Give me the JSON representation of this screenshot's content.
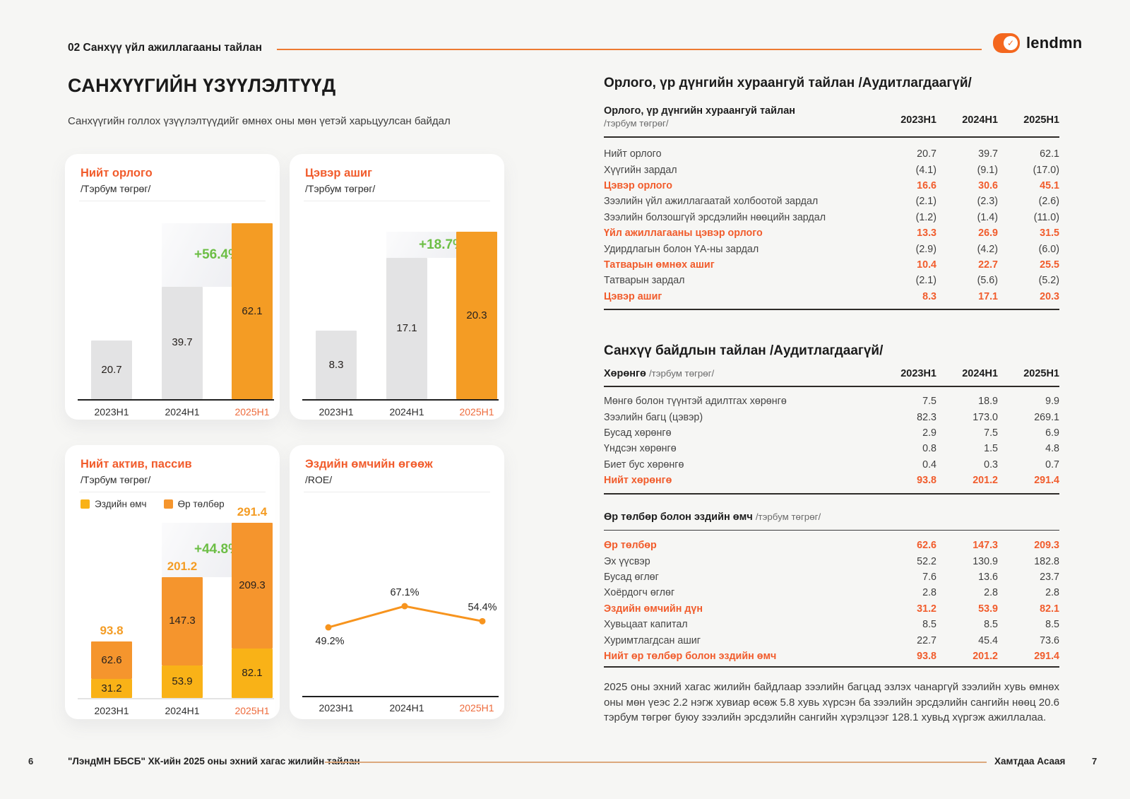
{
  "page": {
    "header": {
      "section_label": "02 Санхүү үйл ажиллагааны тайлан",
      "brand": "lendmn"
    },
    "title": "САНХҮҮГИЙН ҮЗҮҮЛЭЛТҮҮД",
    "subtitle": "Санхүүгийн голлох үзүүлэлтүүдийг өмнөх оны мөн үетэй харьцуулсан байдал",
    "footer": {
      "page_left": "6",
      "report_title": "\"ЛэндМН ББСБ\" ХК-ийн 2025 оны эхний хагас жилийн тайлан",
      "slogan": "Хамтдаа Асаая",
      "page_right": "7"
    }
  },
  "colors": {
    "accent": "#F15C2C",
    "bar_highlight": "#F49C24",
    "bar_default": "#E3E3E4",
    "stack_yellow": "#F9B217",
    "stack_orange": "#F5952D",
    "growth_green": "#6CBE45",
    "line_orange": "#F7941E",
    "header_line": "#EE7A31",
    "footer_line": "#DCA87D"
  },
  "chart_data": [
    {
      "type": "bar",
      "title": "Нийт орлого",
      "subtitle": "/Тэрбум төгрөг/",
      "categories": [
        "2023H1",
        "2024H1",
        "2025H1"
      ],
      "values": [
        20.7,
        39.7,
        62.1
      ],
      "value_labels": [
        "20.7",
        "39.7",
        "62.1"
      ],
      "growth_label": "+56.4%",
      "highlight_index": 2,
      "ylim": [
        0,
        62.1
      ],
      "grid": false
    },
    {
      "type": "bar",
      "title": "Цэвэр ашиг",
      "subtitle": "/Тэрбум төгрөг/",
      "categories": [
        "2023H1",
        "2024H1",
        "2025H1"
      ],
      "values": [
        8.3,
        17.1,
        20.3
      ],
      "value_labels": [
        "8.3",
        "17.1",
        "20.3"
      ],
      "growth_label": "+18.7%",
      "highlight_index": 2,
      "ylim": [
        0,
        20.3
      ],
      "grid": false
    },
    {
      "type": "stacked-bar",
      "title": "Нийт актив, пассив",
      "subtitle": "/Тэрбум төгрөг/",
      "categories": [
        "2023H1",
        "2024H1",
        "2025H1"
      ],
      "series": [
        {
          "name": "Эздийн өмч",
          "values": [
            31.2,
            53.9,
            82.1
          ],
          "labels": [
            "31.2",
            "53.9",
            "82.1"
          ]
        },
        {
          "name": "Өр төлбөр",
          "values": [
            62.6,
            147.3,
            209.3
          ],
          "labels": [
            "62.6",
            "147.3",
            "209.3"
          ]
        }
      ],
      "totals": [
        93.8,
        201.2,
        291.4
      ],
      "total_labels": [
        "93.8",
        "201.2",
        "291.4"
      ],
      "growth_label": "+44.8%",
      "highlight_index": 2,
      "legend_position": "top",
      "grid": false
    },
    {
      "type": "line",
      "title": "Эздийн өмчийн өгөөж",
      "subtitle": "/ROE/",
      "categories": [
        "2023H1",
        "2024H1",
        "2025H1"
      ],
      "values": [
        49.2,
        67.1,
        54.4
      ],
      "value_labels": [
        "49.2%",
        "67.1%",
        "54.4%"
      ],
      "highlight_index": 2,
      "grid": false
    }
  ],
  "tables": {
    "income": {
      "section_title": "Орлого, үр дүнгийн хураангуй тайлан /Аудитлагдаагүй/",
      "header": {
        "label": "Орлого, үр дүнгийн хураангуй тайлан",
        "sublabel": "/тэрбум төгрөг/",
        "columns": [
          "2023H1",
          "2024H1",
          "2025H1"
        ]
      },
      "rows": [
        {
          "label": "Нийт орлого",
          "values": [
            "20.7",
            "39.7",
            "62.1"
          ],
          "em": false
        },
        {
          "label": "Хүүгийн зардал",
          "values": [
            "(4.1)",
            "(9.1)",
            "(17.0)"
          ],
          "em": false
        },
        {
          "label": "Цэвэр орлого",
          "values": [
            "16.6",
            "30.6",
            "45.1"
          ],
          "em": true
        },
        {
          "label": "Зээлийн үйл ажиллагаатай холбоотой зардал",
          "values": [
            "(2.1)",
            "(2.3)",
            "(2.6)"
          ],
          "em": false
        },
        {
          "label": "Зээлийн болзошгүй эрсдэлийн нөөцийн зардал",
          "values": [
            "(1.2)",
            "(1.4)",
            "(11.0)"
          ],
          "em": false
        },
        {
          "label": "Үйл ажиллагааны цэвэр орлого",
          "values": [
            "13.3",
            "26.9",
            "31.5"
          ],
          "em": true
        },
        {
          "label": "Удирдлагын болон ҮА-ны зардал",
          "values": [
            "(2.9)",
            "(4.2)",
            "(6.0)"
          ],
          "em": false
        },
        {
          "label": "Татварын өмнөх ашиг",
          "values": [
            "10.4",
            "22.7",
            "25.5"
          ],
          "em": true
        },
        {
          "label": "Татварын зардал",
          "values": [
            "(2.1)",
            "(5.6)",
            "(5.2)"
          ],
          "em": false
        },
        {
          "label": "Цэвэр ашиг",
          "values": [
            "8.3",
            "17.1",
            "20.3"
          ],
          "em": true
        }
      ]
    },
    "balance": {
      "section_title": "Санхүү байдлын тайлан /Аудитлагдаагүй/",
      "assets": {
        "header_label": "Хөрөнгө",
        "header_sublabel": "/тэрбум төгрөг/",
        "columns": [
          "2023H1",
          "2024H1",
          "2025H1"
        ],
        "rows": [
          {
            "label": "Мөнгө болон түүнтэй адилтгах хөрөнгө",
            "values": [
              "7.5",
              "18.9",
              "9.9"
            ],
            "em": false
          },
          {
            "label": "Зээлийн багц (цэвэр)",
            "values": [
              "82.3",
              "173.0",
              "269.1"
            ],
            "em": false
          },
          {
            "label": "Бусад хөрөнгө",
            "values": [
              "2.9",
              "7.5",
              "6.9"
            ],
            "em": false
          },
          {
            "label": "Үндсэн хөрөнгө",
            "values": [
              "0.8",
              "1.5",
              "4.8"
            ],
            "em": false
          },
          {
            "label": "Биет бус хөрөнгө",
            "values": [
              "0.4",
              "0.3",
              "0.7"
            ],
            "em": false
          },
          {
            "label": "Нийт хөрөнгө",
            "values": [
              "93.8",
              "201.2",
              "291.4"
            ],
            "em": true
          }
        ]
      },
      "liabilities": {
        "header_label": "Өр төлбөр болон эздийн өмч",
        "header_sublabel": "/тэрбум төгрөг/",
        "rows": [
          {
            "label": "Өр төлбөр",
            "values": [
              "62.6",
              "147.3",
              "209.3"
            ],
            "em": true
          },
          {
            "label": "Эх үүсвэр",
            "values": [
              "52.2",
              "130.9",
              "182.8"
            ],
            "em": false
          },
          {
            "label": "Бусад өглөг",
            "values": [
              "7.6",
              "13.6",
              "23.7"
            ],
            "em": false
          },
          {
            "label": "Хоёрдогч өглөг",
            "values": [
              "2.8",
              "2.8",
              "2.8"
            ],
            "em": false
          },
          {
            "label": "Эздийн өмчийн дүн",
            "values": [
              "31.2",
              "53.9",
              "82.1"
            ],
            "em": true
          },
          {
            "label": "Хувьцаат капитал",
            "values": [
              "8.5",
              "8.5",
              "8.5"
            ],
            "em": false
          },
          {
            "label": "Хуримтлагдсан ашиг",
            "values": [
              "22.7",
              "45.4",
              "73.6"
            ],
            "em": false
          },
          {
            "label": "Нийт өр төлбөр болон эздийн өмч",
            "values": [
              "93.8",
              "201.2",
              "291.4"
            ],
            "em": true
          }
        ]
      }
    }
  },
  "note": "2025 оны эхний хагас жилийн байдлаар зээлийн багцад эзлэх чанаргүй зээлийн хувь өмнөх оны мөн үеэс 2.2 нэгж хувиар өсөж 5.8 хувь хүрсэн ба зээлийн эрсдэлийн сангийн нөөц 20.6 тэрбум төгрөг буюу зээлийн эрсдэлийн сангийн хүрэлцээг 128.1 хувьд хүргэж ажиллалаа."
}
